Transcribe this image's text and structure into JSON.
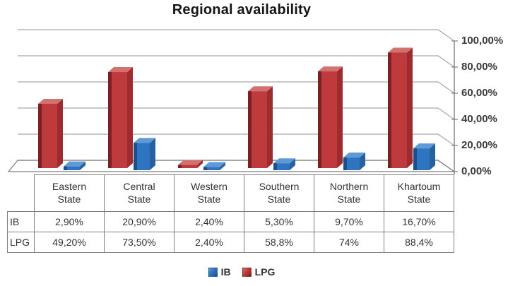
{
  "title": "Regional availability",
  "chart_data": {
    "type": "bar",
    "variant": "3d-clustered-column",
    "title": "Regional availability",
    "categories": [
      "Eastern State",
      "Central State",
      "Western State",
      "Southern State",
      "Northern State",
      "Khartoum State"
    ],
    "series": [
      {
        "name": "IB",
        "color": "#2E74C0",
        "values": [
          2.9,
          20.9,
          2.4,
          5.3,
          9.7,
          16.7
        ],
        "labels": [
          "2,90%",
          "20,90%",
          "2,40%",
          "5,30%",
          "9,70%",
          "16,70%"
        ]
      },
      {
        "name": "LPG",
        "color": "#BE3A3C",
        "values": [
          49.2,
          73.5,
          2.4,
          58.8,
          74,
          88.4
        ],
        "labels": [
          "49,20%",
          "73,50%",
          "2,40%",
          "58,8%",
          "74%",
          "88,4%"
        ]
      }
    ],
    "ylim": [
      0,
      100
    ],
    "y_ticks": [
      0,
      20,
      40,
      60,
      80,
      100
    ],
    "y_tick_labels": [
      "0,00%",
      "20,00%",
      "40,00%",
      "60,00%",
      "80,00%",
      "100,00%"
    ],
    "grid": true,
    "legend_position": "bottom"
  },
  "colors": {
    "grid": "#A8A8A8",
    "frame": "#7F7F7F",
    "axis_text": "#3A3A3A",
    "red": {
      "front": "#BE3A3C",
      "left": "#7E1F21",
      "side": "#9E2B2D",
      "top": "#D3716F"
    },
    "blue": {
      "front": "#2E74C0",
      "left": "#1D4E8A",
      "side": "#27619F",
      "top": "#5E9AD6"
    }
  }
}
